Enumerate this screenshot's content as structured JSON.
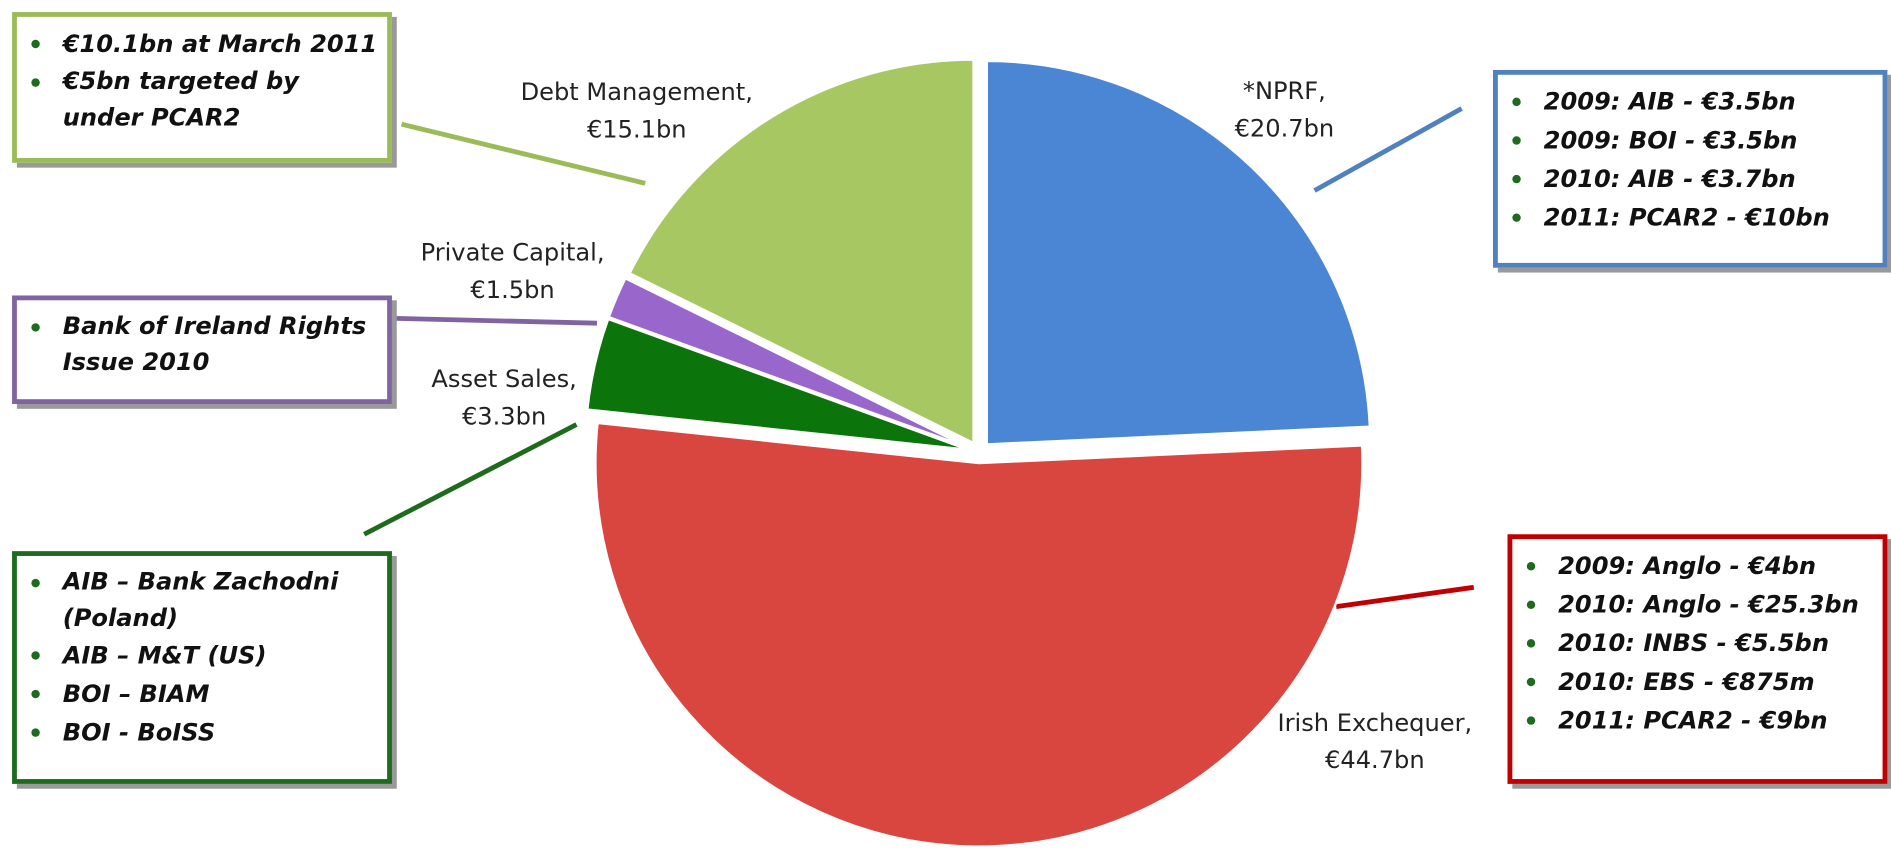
{
  "chart_data": {
    "type": "pie",
    "categories": [
      "*NPRF,",
      "Irish Exchequer,",
      "Asset Sales,",
      "Private Capital,",
      "Debt Management,"
    ],
    "values": [
      20.7,
      44.7,
      3.3,
      1.5,
      15.1
    ],
    "value_labels": [
      "€20.7bn",
      "€44.7bn",
      "€3.3bn",
      "€1.5bn",
      "€15.1bn"
    ],
    "colors": [
      "#4a86d4",
      "#d9463f",
      "#0b750b",
      "#9966cc",
      "#a6c761"
    ],
    "annotations": [
      {
        "color": "#4f81bd",
        "items": [
          "2009: AIB - €3.5bn",
          "2009: BOI - €3.5bn",
          "2010: AIB -  €3.7bn",
          "2011: PCAR2 - €10bn"
        ]
      },
      {
        "color": "#c00000",
        "items": [
          "2009: Anglo - €4bn",
          "2010: Anglo - €25.3bn",
          "2010: INBS - €5.5bn",
          "2010: EBS -  €875m",
          "2011: PCAR2 - €9bn"
        ]
      },
      {
        "color": "#1e6b1e",
        "items": [
          "AIB – Bank Zachodni (Poland)",
          "AIB – M&T (US)",
          "BOI – BIAM",
          "BOI -  BoISS"
        ]
      },
      {
        "color": "#8064a2",
        "items": [
          "Bank of Ireland Rights Issue 2010"
        ]
      },
      {
        "color": "#9bbb59",
        "items": [
          "€10.1bn at March 2011",
          "€5bn targeted by under PCAR2"
        ]
      }
    ]
  }
}
